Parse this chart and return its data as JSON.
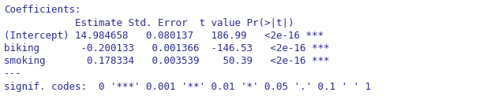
{
  "line1": "Coefficients:",
  "line2": "            Estimate Std. Error  t value Pr(>|t|)    ",
  "line3": "(Intercept) 14.984658   0.080137   186.99   <2e-16 ***",
  "line4": "biking       -0.200133   0.001366  -146.53   <2e-16 ***",
  "line5": "smoking       0.178334   0.003539    50.39   <2e-16 ***",
  "line6": "---",
  "line7": "signif. codes:  0 '***' 0.001 '**' 0.01 '*' 0.05 '.' 0.1 ' ' 1",
  "bg_color": "#ffffff",
  "text_color": "#2b2b8f",
  "font_size": 9.0
}
